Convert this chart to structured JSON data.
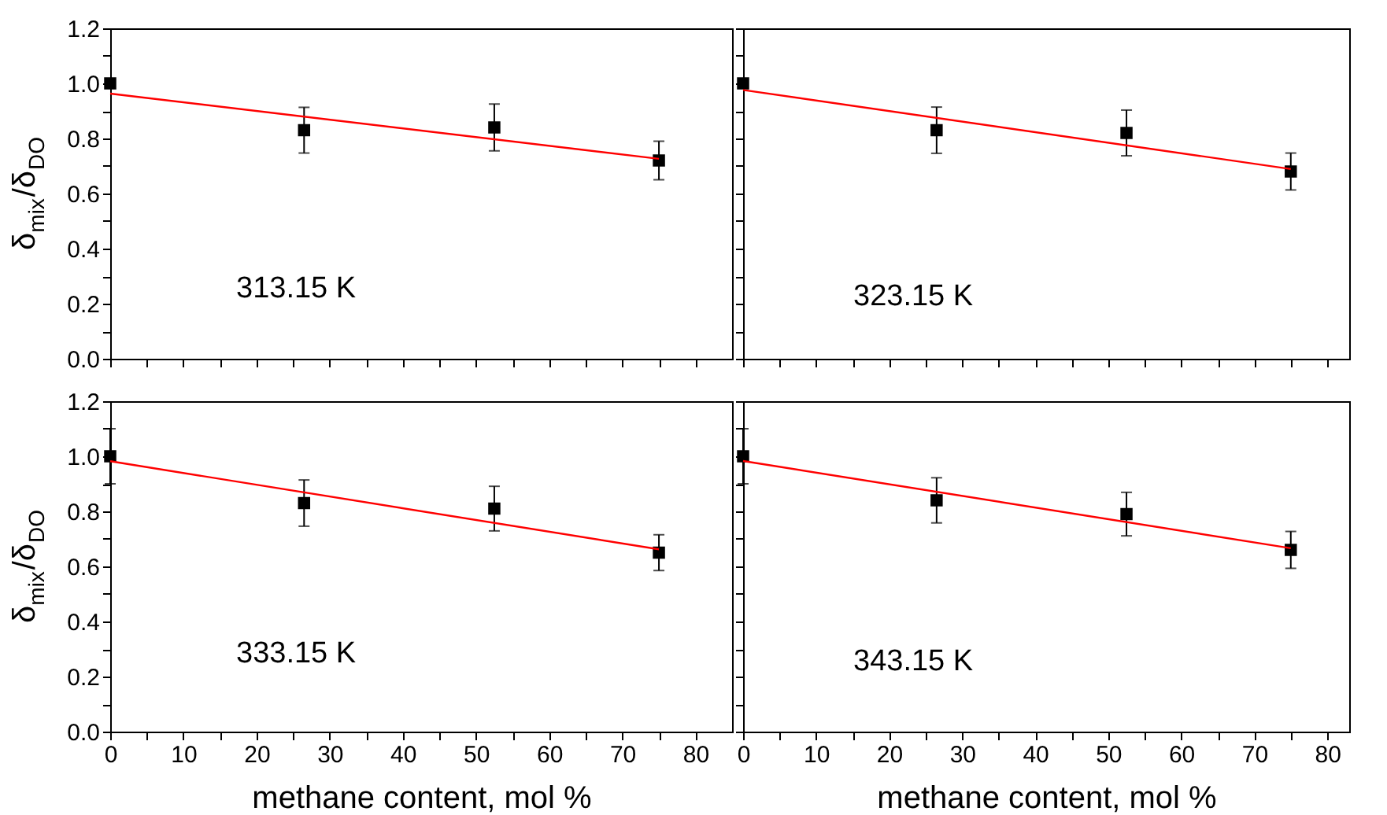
{
  "chart_data": [
    {
      "type": "scatter",
      "ylabel": "δ$_{mix}$/δ$_{DO}$",
      "annotations": [
        "313.15 K"
      ],
      "xlim": [
        0,
        85
      ],
      "ylim": [
        0,
        1.2
      ],
      "tick_labels": "y",
      "grid": false,
      "xticks": [
        0,
        {
          "value": 5,
          "label": null
        },
        {
          "value": 10,
          "label": null
        },
        {
          "value": 15,
          "label": null
        },
        {
          "value": 20,
          "label": null
        },
        {
          "value": 25,
          "label": null
        },
        {
          "value": 30,
          "label": null
        },
        {
          "value": 35,
          "label": null
        },
        {
          "value": 40,
          "label": null
        },
        {
          "value": 45,
          "label": null
        },
        {
          "value": 50,
          "label": null
        },
        {
          "value": 55,
          "label": null
        },
        {
          "value": 60,
          "label": null
        },
        {
          "value": 65,
          "label": null
        },
        {
          "value": 70,
          "label": null
        },
        {
          "value": 75,
          "label": null
        },
        {
          "value": 80,
          "label": null
        }
      ],
      "yticks": [
        {
          "value": 0,
          "label": "0.0"
        },
        {
          "value": 0.1,
          "label": null
        },
        0.2,
        {
          "value": 0.3,
          "label": null
        },
        0.4,
        {
          "value": 0.5,
          "label": null
        },
        0.6,
        {
          "value": 0.7,
          "label": null
        },
        0.8,
        {
          "value": 0.9,
          "label": null
        },
        {
          "value": 1,
          "label": "1.0"
        },
        {
          "value": 1.1,
          "label": null
        },
        1.2
      ],
      "series": [
        {
          "type": "scatter",
          "marker": "square",
          "color": "#000000",
          "x": [
            0,
            26.5,
            52.5,
            75
          ],
          "values": [
            1.0,
            0.83,
            0.84,
            0.72
          ],
          "errors": [
            null,
            0.083,
            0.085,
            0.07
          ]
        },
        {
          "type": "line",
          "color": "#ff0000",
          "x": [
            0,
            75
          ],
          "values": [
            0.963,
            0.726
          ]
        }
      ]
    },
    {
      "type": "scatter",
      "annotations": [
        "323.15 K"
      ],
      "xlim": [
        0,
        83
      ],
      "ylim": [
        0,
        1.2
      ],
      "tick_labels": false,
      "grid": false,
      "xticks": [
        {
          "value": 0,
          "label": null
        },
        {
          "value": 5,
          "label": null
        },
        {
          "value": 10,
          "label": null
        },
        {
          "value": 15,
          "label": null
        },
        {
          "value": 20,
          "label": null
        },
        {
          "value": 25,
          "label": null
        },
        {
          "value": 30,
          "label": null
        },
        {
          "value": 35,
          "label": null
        },
        {
          "value": 40,
          "label": null
        },
        {
          "value": 45,
          "label": null
        },
        {
          "value": 50,
          "label": null
        },
        {
          "value": 55,
          "label": null
        },
        {
          "value": 60,
          "label": null
        },
        {
          "value": 65,
          "label": null
        },
        {
          "value": 70,
          "label": null
        },
        {
          "value": 75,
          "label": null
        },
        {
          "value": 80,
          "label": null
        }
      ],
      "yticks": [
        {
          "value": 0.0,
          "label": null
        },
        {
          "value": 0.1,
          "label": null
        },
        {
          "value": 0.2,
          "label": null
        },
        {
          "value": 0.3,
          "label": null
        },
        {
          "value": 0.4,
          "label": null
        },
        {
          "value": 0.5,
          "label": null
        },
        {
          "value": 0.6,
          "label": null
        },
        {
          "value": 0.7,
          "label": null
        },
        {
          "value": 0.8,
          "label": null
        },
        {
          "value": 0.9,
          "label": null
        },
        {
          "value": 1.0,
          "label": null
        },
        {
          "value": 1.1,
          "label": null
        },
        {
          "value": 1.2,
          "label": null
        }
      ],
      "series": [
        {
          "type": "scatter",
          "marker": "square",
          "color": "#000000",
          "x": [
            0,
            26.5,
            52.5,
            75
          ],
          "values": [
            1.0,
            0.83,
            0.82,
            0.68
          ],
          "errors": [
            null,
            0.084,
            0.083,
            0.067
          ]
        },
        {
          "type": "line",
          "color": "#ff0000",
          "x": [
            0,
            75
          ],
          "values": [
            0.976,
            0.689
          ]
        }
      ]
    },
    {
      "type": "scatter",
      "xlabel": "methane content, mol %",
      "ylabel": "δ$_{mix}$/δ$_{DO}$",
      "annotations": [
        "333.15 K"
      ],
      "xlim": [
        0,
        85
      ],
      "ylim": [
        0,
        1.2
      ],
      "grid": false,
      "xticks": [
        0,
        {
          "value": 5,
          "label": null
        },
        10,
        {
          "value": 15,
          "label": null
        },
        20,
        {
          "value": 25,
          "label": null
        },
        30,
        {
          "value": 35,
          "label": null
        },
        40,
        {
          "value": 45,
          "label": null
        },
        50,
        {
          "value": 55,
          "label": null
        },
        60,
        {
          "value": 65,
          "label": null
        },
        70,
        {
          "value": 75,
          "label": null
        },
        80
      ],
      "yticks": [
        {
          "value": 0,
          "label": "0.0"
        },
        {
          "value": 0.1,
          "label": null
        },
        0.2,
        {
          "value": 0.3,
          "label": null
        },
        0.4,
        {
          "value": 0.5,
          "label": null
        },
        0.6,
        {
          "value": 0.7,
          "label": null
        },
        0.8,
        {
          "value": 0.9,
          "label": null
        },
        {
          "value": 1,
          "label": "1.0"
        },
        {
          "value": 1.1,
          "label": null
        },
        1.2
      ],
      "series": [
        {
          "type": "scatter",
          "marker": "square",
          "color": "#000000",
          "x": [
            0,
            26.5,
            52.5,
            75
          ],
          "values": [
            1.0,
            0.83,
            0.81,
            0.65
          ],
          "errors": [
            0.1,
            0.084,
            0.081,
            0.065
          ]
        },
        {
          "type": "line",
          "color": "#ff0000",
          "x": [
            0,
            75
          ],
          "values": [
            0.982,
            0.662
          ]
        }
      ]
    },
    {
      "type": "scatter",
      "xlabel": "methane content, mol %",
      "annotations": [
        "343.15 K"
      ],
      "xlim": [
        0,
        83
      ],
      "ylim": [
        0,
        1.2
      ],
      "tick_labels": "x",
      "grid": false,
      "xticks": [
        0,
        {
          "value": 5,
          "label": null
        },
        10,
        {
          "value": 15,
          "label": null
        },
        20,
        {
          "value": 25,
          "label": null
        },
        30,
        {
          "value": 35,
          "label": null
        },
        40,
        {
          "value": 45,
          "label": null
        },
        50,
        {
          "value": 55,
          "label": null
        },
        60,
        {
          "value": 65,
          "label": null
        },
        70,
        {
          "value": 75,
          "label": null
        },
        80
      ],
      "yticks": [
        {
          "value": 0.0,
          "label": null
        },
        {
          "value": 0.1,
          "label": null
        },
        {
          "value": 0.2,
          "label": null
        },
        {
          "value": 0.3,
          "label": null
        },
        {
          "value": 0.4,
          "label": null
        },
        {
          "value": 0.5,
          "label": null
        },
        {
          "value": 0.6,
          "label": null
        },
        {
          "value": 0.7,
          "label": null
        },
        {
          "value": 0.8,
          "label": null
        },
        {
          "value": 0.9,
          "label": null
        },
        {
          "value": 1.0,
          "label": null
        },
        {
          "value": 1.1,
          "label": null
        },
        {
          "value": 1.2,
          "label": null
        }
      ],
      "series": [
        {
          "type": "scatter",
          "marker": "square",
          "color": "#000000",
          "x": [
            0,
            26.5,
            52.5,
            75
          ],
          "values": [
            1.0,
            0.84,
            0.79,
            0.66
          ],
          "errors": [
            0.1,
            0.082,
            0.079,
            0.067
          ]
        },
        {
          "type": "line",
          "color": "#ff0000",
          "x": [
            0,
            75
          ],
          "values": [
            0.983,
            0.666
          ]
        }
      ]
    }
  ]
}
